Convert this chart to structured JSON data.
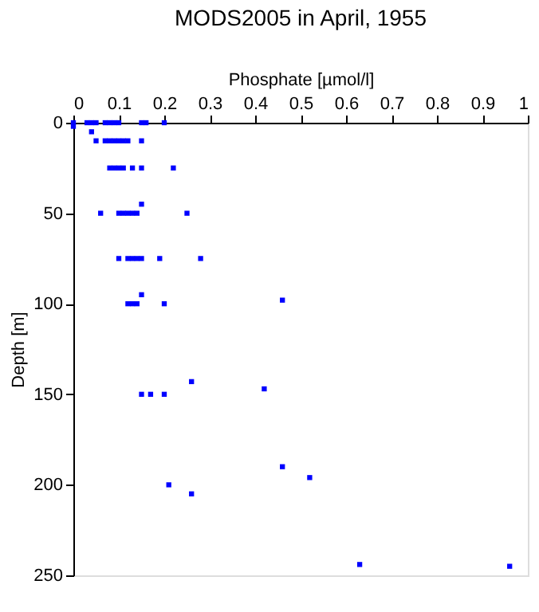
{
  "chart_data": {
    "type": "scatter",
    "title": "MODS2005 in April, 1955",
    "xlabel": "Phosphate [µmol/l]",
    "ylabel": "Depth [m]",
    "series": [
      {
        "color": "#0000ff",
        "x": [
          0,
          0.03,
          0.04,
          0.05,
          0.07,
          0.08,
          0.09,
          0.1,
          0.15,
          0.16,
          0.2,
          0,
          0.04,
          0.05,
          0.07,
          0.08,
          0.09,
          0.1,
          0.11,
          0.12,
          0.15,
          0.08,
          0.09,
          0.1,
          0.11,
          0.13,
          0.15,
          0.22,
          0.15,
          0.06,
          0.1,
          0.11,
          0.12,
          0.13,
          0.14,
          0.25,
          0.1,
          0.12,
          0.13,
          0.14,
          0.15,
          0.19,
          0.28,
          0.15,
          0.12,
          0.13,
          0.14,
          0.2,
          0.46,
          0.15,
          0.17,
          0.2,
          0.26,
          0.42,
          0.21,
          0.26,
          0.46,
          0.52,
          0.63,
          0.96
        ],
        "values": [
          0,
          0,
          0,
          0,
          0,
          0,
          0,
          0,
          0,
          0,
          0,
          2,
          5,
          10,
          10,
          10,
          10,
          10,
          10,
          10,
          10,
          25,
          25,
          25,
          25,
          25,
          25,
          25,
          45,
          50,
          50,
          50,
          50,
          50,
          50,
          50,
          75,
          75,
          75,
          75,
          75,
          75,
          75,
          95,
          100,
          100,
          100,
          100,
          98,
          150,
          150,
          150,
          143,
          147,
          200,
          205,
          190,
          196,
          244,
          245
        ]
      }
    ],
    "xlim": [
      0,
      1
    ],
    "xticks": [
      0,
      0.1,
      0.2,
      0.3,
      0.4,
      0.5,
      0.6,
      0.7,
      0.8,
      0.9,
      1
    ],
    "ylim": [
      250,
      0
    ],
    "yticks": [
      0,
      50,
      100,
      150,
      200,
      250
    ],
    "marker": "square",
    "grid": false,
    "legend": false
  }
}
